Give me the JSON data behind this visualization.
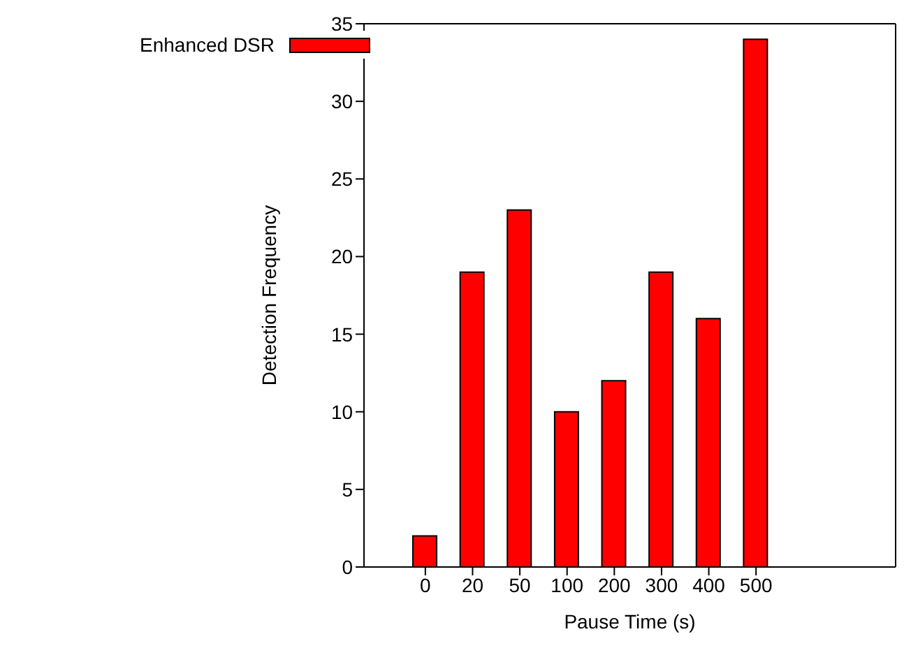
{
  "chart_data": {
    "type": "bar",
    "xlabel": "Pause Time (s)",
    "ylabel": "Detection Frequency",
    "categories": [
      "0",
      "20",
      "50",
      "100",
      "200",
      "300",
      "400",
      "500"
    ],
    "series": [
      {
        "name": "Enhanced DSR",
        "color": "#ff0000",
        "values": [
          2,
          19,
          23,
          10,
          12,
          19,
          16,
          34
        ]
      }
    ],
    "ylim": [
      0,
      35
    ],
    "yticks": [
      0,
      5,
      10,
      15,
      20,
      25,
      30,
      35
    ],
    "grid": false,
    "legend": "top left"
  }
}
